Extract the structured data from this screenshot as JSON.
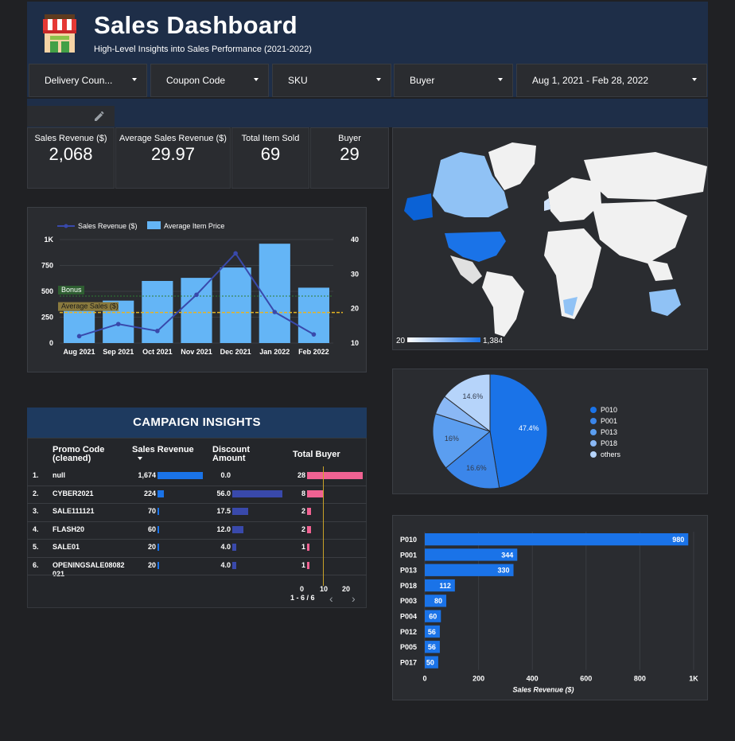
{
  "header": {
    "title": "Sales Dashboard",
    "subtitle": "High-Level Insights into Sales Performance (2021-2022)"
  },
  "filters": [
    {
      "label": "Delivery Coun..."
    },
    {
      "label": "Coupon Code"
    },
    {
      "label": "SKU"
    },
    {
      "label": "Buyer"
    },
    {
      "label": "Aug 1, 2021 - Feb 28, 2022"
    }
  ],
  "kpis": [
    {
      "label": "Sales Revenue ($)",
      "value": "2,068"
    },
    {
      "label": "Average Sales Revenue ($)",
      "value": "29.97"
    },
    {
      "label": "Total Item Sold",
      "value": "69"
    },
    {
      "label": "Buyer",
      "value": "29"
    }
  ],
  "combo_chart": {
    "legend_line": "Sales Revenue ($)",
    "legend_bar": "Average Item Price",
    "bonus_label": "Bonus",
    "avg_label": "Average Sales ($)"
  },
  "map": {
    "legend_min": "20",
    "legend_max": "1,384"
  },
  "campaign": {
    "title": "CAMPAIGN INSIGHTS",
    "col_promo": "Promo Code (cleaned)",
    "col_revenue": "Sales Revenue",
    "col_discount": "Discount Amount",
    "col_buyer": "Total Buyer",
    "axis_ticks": [
      "0",
      "10",
      "20"
    ],
    "pagination": "1 - 6 / 6",
    "rows": [
      {
        "n": "1.",
        "code": "null",
        "revenue": "1,674",
        "discount": "0.0",
        "buyer": "28",
        "rev_v": 1674,
        "disc_v": 0.0,
        "buy_v": 28
      },
      {
        "n": "2.",
        "code": "CYBER2021",
        "revenue": "224",
        "discount": "56.0",
        "buyer": "8",
        "rev_v": 224,
        "disc_v": 56.0,
        "buy_v": 8
      },
      {
        "n": "3.",
        "code": "SALE111121",
        "revenue": "70",
        "discount": "17.5",
        "buyer": "2",
        "rev_v": 70,
        "disc_v": 17.5,
        "buy_v": 2
      },
      {
        "n": "4.",
        "code": "FLASH20",
        "revenue": "60",
        "discount": "12.0",
        "buyer": "2",
        "rev_v": 60,
        "disc_v": 12.0,
        "buy_v": 2
      },
      {
        "n": "5.",
        "code": "SALE01",
        "revenue": "20",
        "discount": "4.0",
        "buyer": "1",
        "rev_v": 20,
        "disc_v": 4.0,
        "buy_v": 1
      },
      {
        "n": "6.",
        "code": "OPENINGSALE08082 021",
        "revenue": "20",
        "discount": "4.0",
        "buyer": "1",
        "rev_v": 20,
        "disc_v": 4.0,
        "buy_v": 1
      }
    ]
  },
  "pie": {
    "legend": [
      "P010",
      "P001",
      "P013",
      "P018",
      "others"
    ]
  },
  "colors": {
    "accent": "#1a73e8",
    "light_bar": "#64b5f6",
    "line": "#3949ab",
    "pink": "#f06292",
    "header_bg": "#1e2e48"
  },
  "chart_data": [
    {
      "type": "bar",
      "categories": [
        "Aug 2021",
        "Sep 2021",
        "Oct 2021",
        "Nov 2021",
        "Dec 2021",
        "Jan 2022",
        "Feb 2022"
      ],
      "series": [
        {
          "name": "Sales Revenue ($)",
          "type": "line",
          "axis": "right",
          "values": [
            12,
            15.5,
            13.5,
            24,
            36,
            19,
            12.5
          ]
        },
        {
          "name": "Average Item Price",
          "type": "bar",
          "axis": "left",
          "values": [
            310,
            410,
            600,
            630,
            730,
            960,
            535
          ]
        }
      ],
      "left_ticks": [
        "0",
        "250",
        "500",
        "750",
        "1K"
      ],
      "right_ticks": [
        "10",
        "20",
        "30",
        "40"
      ],
      "ylim_left": [
        0,
        1000
      ],
      "ylim_right": [
        10,
        40
      ],
      "reference_lines": [
        {
          "label": "Bonus",
          "value": 500
        },
        {
          "label": "Average Sales ($)",
          "value": 295
        }
      ]
    },
    {
      "type": "pie",
      "labels": [
        "P010",
        "P001",
        "P013",
        "P018",
        "others"
      ],
      "values": [
        47.4,
        16.6,
        16,
        5.4,
        14.6
      ],
      "value_labels": [
        "47.4%",
        "16.6%",
        "16%",
        "",
        "14.6%"
      ]
    },
    {
      "type": "bar",
      "orientation": "horizontal",
      "categories": [
        "P010",
        "P001",
        "P013",
        "P018",
        "P003",
        "P004",
        "P012",
        "P005",
        "P017"
      ],
      "values": [
        980,
        344,
        330,
        112,
        80,
        60,
        56,
        56,
        50
      ],
      "x_ticks": [
        "0",
        "200",
        "400",
        "600",
        "800",
        "1K"
      ],
      "xlabel": "Sales Revenue ($)",
      "xlim": [
        0,
        1000
      ]
    }
  ]
}
